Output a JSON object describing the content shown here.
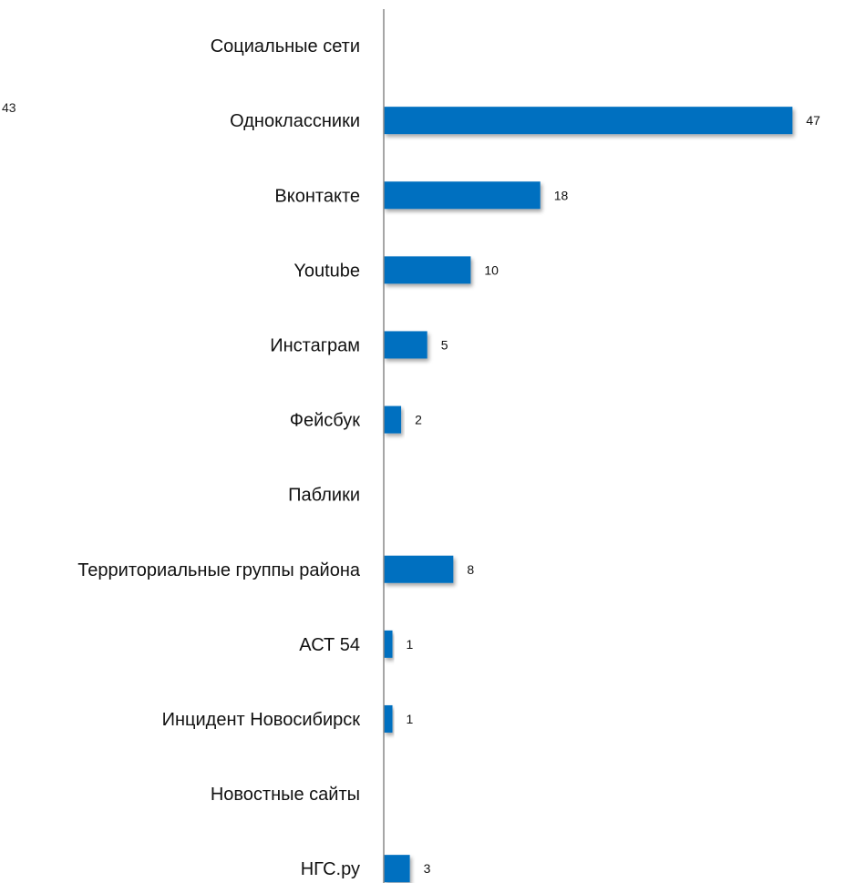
{
  "chart_data": {
    "type": "bar",
    "orientation": "horizontal",
    "categories": [
      "Социальные сети",
      "Одноклассники",
      "Вконтакте",
      "Youtube",
      "Инстаграм",
      "Фейсбук",
      "Паблики",
      "Территориальные группы района",
      "АСТ 54",
      "Инцидент Новосибирск",
      "Новостные сайты",
      "НГС.ру"
    ],
    "values": [
      null,
      47,
      18,
      10,
      5,
      2,
      null,
      8,
      1,
      1,
      null,
      3
    ],
    "value_labels": [
      "",
      "47",
      "18",
      "10",
      "5",
      "2",
      "",
      "8",
      "1",
      "1",
      "",
      "3"
    ],
    "stray_label": "43",
    "xlim": [
      0,
      50
    ],
    "grid": false,
    "legend": "none",
    "bar_color": "#0070c0",
    "axis_color": "#888888"
  }
}
